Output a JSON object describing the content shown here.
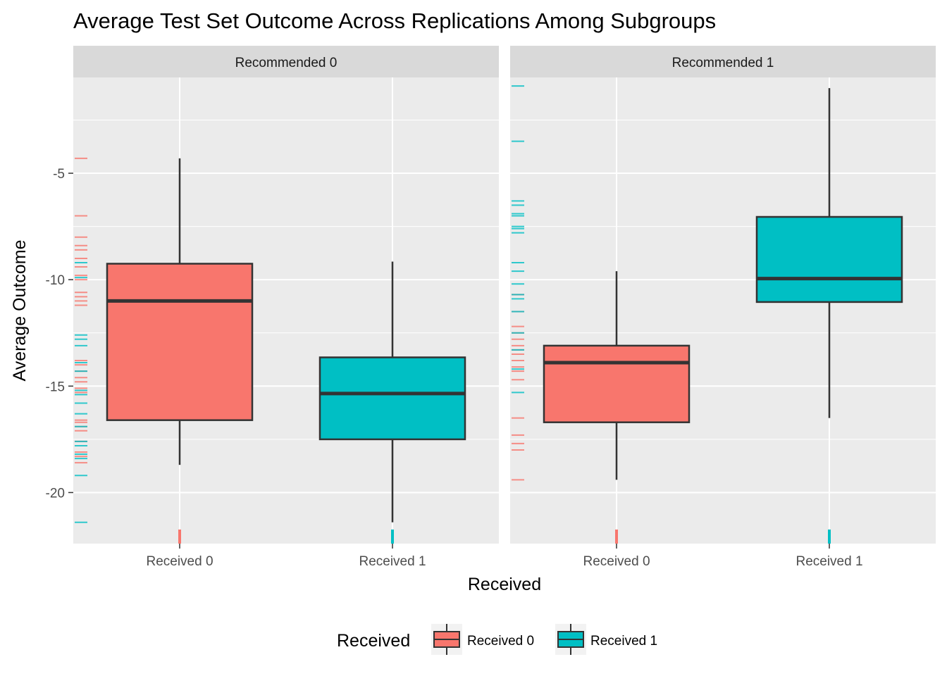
{
  "chart_data": {
    "type": "boxplot",
    "title": "Average Test Set Outcome Across Replications Among Subgroups",
    "xlabel": "Received",
    "ylabel": "Average Outcome",
    "ylim": [
      -22.4,
      -0.5
    ],
    "yticks": [
      -5,
      -10,
      -15,
      -20
    ],
    "ytick_labels": [
      "-5",
      "-10",
      "-15",
      "-20"
    ],
    "categories": [
      "Received 0",
      "Received 1"
    ],
    "grid": true,
    "legend": {
      "title": "Received",
      "position": "bottom",
      "entries": [
        {
          "label": "Received 0",
          "color": "#F8766D"
        },
        {
          "label": "Received 1",
          "color": "#00BFC4"
        }
      ]
    },
    "colors": {
      "Received 0": "#F8766D",
      "Received 1": "#00BFC4",
      "panel_bg": "#EBEBEB",
      "strip_bg": "#D9D9D9",
      "grid": "#FFFFFF"
    },
    "facets": [
      {
        "label": "Recommended 0",
        "boxes": [
          {
            "category": "Received 0",
            "min": -18.7,
            "q1": -16.6,
            "median": -11.0,
            "q3": -9.25,
            "max": -4.3
          },
          {
            "category": "Received 1",
            "min": -21.4,
            "q1": -17.5,
            "median": -15.35,
            "q3": -13.65,
            "max": -9.15
          }
        ],
        "rug": {
          "Received 0": [
            -4.3,
            -7.0,
            -8.0,
            -8.4,
            -8.6,
            -9.0,
            -9.4,
            -9.8,
            -10.0,
            -10.6,
            -10.8,
            -11.0,
            -11.2,
            -13.8,
            -14.0,
            -14.3,
            -14.6,
            -14.8,
            -15.1,
            -15.3,
            -16.6,
            -16.7,
            -16.9,
            -17.1,
            -17.6,
            -18.1,
            -18.3,
            -18.6
          ],
          "Received 1": [
            -9.2,
            -9.9,
            -12.6,
            -12.8,
            -13.1,
            -13.9,
            -14.3,
            -15.2,
            -15.4,
            -15.8,
            -16.3,
            -16.9,
            -17.6,
            -17.8,
            -18.2,
            -18.4,
            -19.2,
            -21.4
          ]
        }
      },
      {
        "label": "Recommended 1",
        "boxes": [
          {
            "category": "Received 0",
            "min": -19.4,
            "q1": -16.7,
            "median": -13.9,
            "q3": -13.1,
            "max": -9.6
          },
          {
            "category": "Received 1",
            "min": -16.5,
            "q1": -11.05,
            "median": -9.95,
            "q3": -7.05,
            "max": -1.0
          }
        ],
        "rug": {
          "Received 0": [
            -10.7,
            -11.5,
            -12.2,
            -12.5,
            -12.8,
            -13.1,
            -13.3,
            -13.5,
            -13.8,
            -14.1,
            -14.3,
            -14.7,
            -16.5,
            -17.3,
            -17.7,
            -18.0,
            -19.4
          ],
          "Received 1": [
            -0.9,
            -3.5,
            -6.3,
            -6.5,
            -6.9,
            -7.0,
            -7.5,
            -7.6,
            -7.8,
            -9.2,
            -9.6,
            -10.2,
            -10.7,
            -10.9,
            -11.5,
            -12.5,
            -13.3,
            -14.2,
            -15.3
          ]
        }
      }
    ]
  }
}
